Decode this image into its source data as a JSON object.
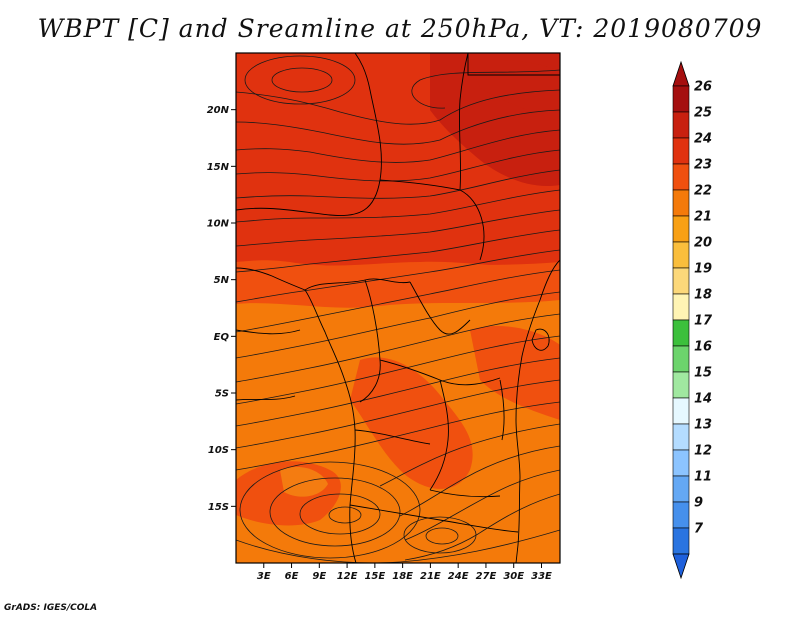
{
  "figure": {
    "title": "WBPT [C] and Sreamline at 250hPa, VT: 2019080709",
    "credit": "GrADS: IGES/COLA"
  },
  "map_extent": {
    "lon_min": 0,
    "lon_max": 35,
    "lat_min": -20,
    "lat_max": 25
  },
  "axes": {
    "lat_ticks": [
      {
        "value": 20,
        "label": "20N"
      },
      {
        "value": 15,
        "label": "15N"
      },
      {
        "value": 10,
        "label": "10N"
      },
      {
        "value": 5,
        "label": "5N"
      },
      {
        "value": 0,
        "label": "EQ"
      },
      {
        "value": -5,
        "label": "5S"
      },
      {
        "value": -10,
        "label": "10S"
      },
      {
        "value": -15,
        "label": "15S"
      }
    ],
    "lon_ticks": [
      {
        "value": 3,
        "label": "3E"
      },
      {
        "value": 6,
        "label": "6E"
      },
      {
        "value": 9,
        "label": "9E"
      },
      {
        "value": 12,
        "label": "12E"
      },
      {
        "value": 15,
        "label": "15E"
      },
      {
        "value": 18,
        "label": "18E"
      },
      {
        "value": 21,
        "label": "21E"
      },
      {
        "value": 24,
        "label": "24E"
      },
      {
        "value": 27,
        "label": "27E"
      },
      {
        "value": 30,
        "label": "30E"
      },
      {
        "value": 33,
        "label": "33E"
      }
    ]
  },
  "colorbar": {
    "labels": [
      "26",
      "25",
      "24",
      "23",
      "22",
      "21",
      "20",
      "19",
      "18",
      "17",
      "16",
      "15",
      "14",
      "13",
      "12",
      "11",
      "9",
      "7"
    ],
    "colors": [
      "#a50f0f",
      "#c8200f",
      "#e0320f",
      "#f0500f",
      "#f47a0a",
      "#f8a014",
      "#fabe3c",
      "#fcd87a",
      "#fff4b4",
      "#3cc03c",
      "#6cd46c",
      "#a0e8a0",
      "#e6f8ff",
      "#b4dcff",
      "#8cc4ff",
      "#64a8f4",
      "#4690ec",
      "#2a74e0"
    ],
    "top_color": "#a50f0f",
    "bottom_color": "#1e60dc"
  },
  "field_colors": {
    "c23": "#f0500f",
    "c24": "#e0320f",
    "c22": "#f47a0a",
    "c25": "#c8200f",
    "c21": "#f8a014"
  }
}
